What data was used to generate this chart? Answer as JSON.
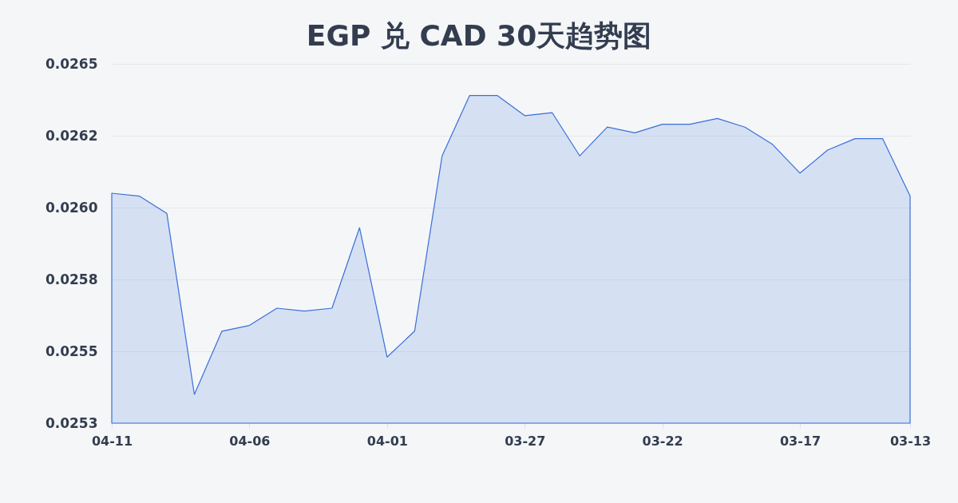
{
  "chart_data": {
    "type": "area",
    "title": "EGP 兑 CAD 30天趋势图",
    "categories": [
      "04-11",
      null,
      null,
      null,
      null,
      "04-06",
      null,
      null,
      null,
      null,
      "04-01",
      null,
      null,
      null,
      null,
      "03-27",
      null,
      null,
      null,
      null,
      "03-22",
      null,
      null,
      null,
      null,
      "03-17",
      null,
      null,
      null,
      "03-13"
    ],
    "series": [
      {
        "color": "#3a6fd8",
        "values": [
          0.02605,
          0.02604,
          0.02598,
          0.02535,
          0.02557,
          0.02559,
          0.02565,
          0.02564,
          0.02565,
          0.02593,
          0.02548,
          0.02557,
          0.02618,
          0.02639,
          0.02639,
          0.02632,
          0.02633,
          0.02618,
          0.02628,
          0.02626,
          0.02629,
          0.02629,
          0.02631,
          0.02628,
          0.02622,
          0.02612,
          0.0262,
          0.02624,
          0.02624,
          0.02604
        ]
      }
    ],
    "ylim": [
      0.02525,
      0.0265
    ],
    "yticks": [
      {
        "value": 0.02525,
        "label": "0.0253"
      },
      0.0255,
      {
        "value": 0.02575,
        "label": "0.0258"
      },
      {
        "value": 0.026,
        "label": "0.0260"
      },
      {
        "value": 0.02625,
        "label": "0.0262"
      },
      0.0265
    ],
    "grid": "y"
  }
}
